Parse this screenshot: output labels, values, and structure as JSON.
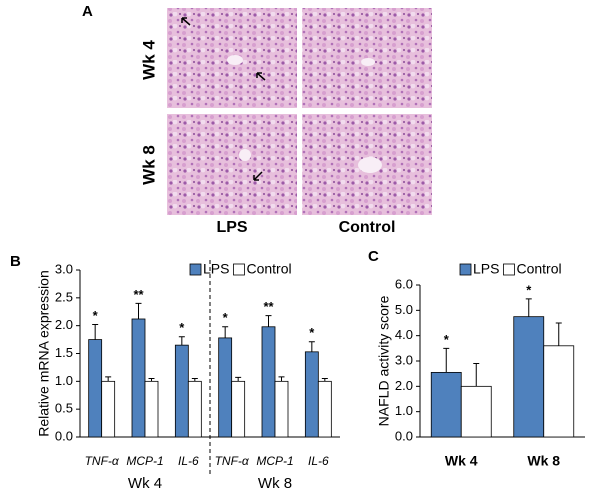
{
  "panel_a": {
    "label": "A",
    "rows": [
      "Wk 4",
      "Wk 8"
    ],
    "columns": [
      "LPS",
      "Control"
    ]
  },
  "chart_data": [
    {
      "type": "bar",
      "panel_label": "B",
      "ylabel": "Relative mRNA expression",
      "categories": [
        "TNF-α",
        "MCP-1",
        "IL-6",
        "TNF-α",
        "MCP-1",
        "IL-6"
      ],
      "groups": [
        "Wk 4",
        "Wk 8"
      ],
      "series": [
        {
          "name": "LPS",
          "color": "#4f81bd",
          "values": [
            1.75,
            2.12,
            1.65,
            1.78,
            1.98,
            1.53
          ],
          "errors": [
            0.27,
            0.28,
            0.15,
            0.2,
            0.2,
            0.18
          ],
          "annotations": [
            "*",
            "**",
            "*",
            "*",
            "**",
            "*"
          ]
        },
        {
          "name": "Control",
          "color": "#ffffff",
          "values": [
            1.0,
            1.0,
            1.0,
            1.0,
            1.0,
            1.0
          ],
          "errors": [
            0.08,
            0.05,
            0.05,
            0.07,
            0.08,
            0.05
          ]
        }
      ],
      "ylim": [
        0,
        3
      ],
      "yticks": [
        {
          "value": 0,
          "label": "0.0"
        },
        0.5,
        {
          "value": 1,
          "label": "1.0"
        },
        1.5,
        {
          "value": 2,
          "label": "2.0"
        },
        2.5,
        {
          "value": 3,
          "label": "3.0"
        }
      ]
    },
    {
      "type": "bar",
      "panel_label": "C",
      "ylabel": "NAFLD activity score",
      "categories": [
        "Wk 4",
        "Wk 8"
      ],
      "series": [
        {
          "name": "LPS",
          "color": "#4f81bd",
          "values": [
            2.55,
            4.75
          ],
          "errors": [
            0.95,
            0.7
          ],
          "annotations": [
            "*",
            "*"
          ]
        },
        {
          "name": "Control",
          "color": "#ffffff",
          "values": [
            2.0,
            3.6
          ],
          "errors": [
            0.9,
            0.9
          ]
        }
      ],
      "ylim": [
        0,
        6
      ],
      "yticks": [
        {
          "value": 0,
          "label": "0.0"
        },
        {
          "value": 1,
          "label": "1.0"
        },
        {
          "value": 2,
          "label": "2.0"
        },
        {
          "value": 3,
          "label": "3.0"
        },
        {
          "value": 4,
          "label": "4.0"
        },
        {
          "value": 5,
          "label": "5.0"
        },
        {
          "value": 6,
          "label": "6.0"
        }
      ]
    }
  ]
}
